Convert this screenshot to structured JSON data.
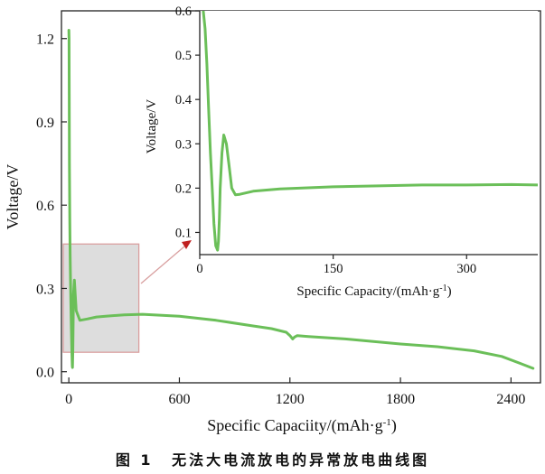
{
  "chart_data": [
    {
      "type": "line",
      "xlabel": "Specific Capaciity/(mAh·g",
      "xlabel_sup": "-1",
      "xlabel_tail": ")",
      "ylabel": "Voltage/V",
      "xlim": [
        -40,
        2560
      ],
      "ylim": [
        -0.04,
        1.3
      ],
      "xticks": [
        0,
        600,
        1200,
        1800,
        2400
      ],
      "xtick_labels": [
        "0",
        "600",
        "1200",
        "1800",
        "2400"
      ],
      "yticks": [
        0.0,
        0.3,
        0.6,
        0.9,
        1.2
      ],
      "ytick_labels": [
        "0.0",
        "0.3",
        "0.6",
        "0.9",
        "1.2"
      ],
      "grid": false,
      "line_color": "#6bbf59",
      "highlight_region": {
        "x": [
          -30,
          380
        ],
        "y": [
          0.07,
          0.46
        ],
        "fill": "#d9d9d9",
        "stroke": "#d9a0a0"
      },
      "series": [
        {
          "x": [
            0,
            1,
            2,
            3,
            5,
            7,
            9,
            11,
            13,
            15,
            17,
            19,
            20,
            22,
            25,
            30,
            40,
            60,
            100,
            150,
            200,
            300,
            400,
            600,
            800,
            1000,
            1100,
            1180,
            1200,
            1215,
            1225,
            1240,
            1300,
            1500,
            1800,
            2000,
            2200,
            2350,
            2450,
            2520
          ],
          "y": [
            1.23,
            1.2,
            1.0,
            0.75,
            0.55,
            0.42,
            0.33,
            0.25,
            0.18,
            0.12,
            0.06,
            0.02,
            0.015,
            0.08,
            0.28,
            0.33,
            0.22,
            0.185,
            0.19,
            0.197,
            0.2,
            0.205,
            0.207,
            0.2,
            0.185,
            0.165,
            0.155,
            0.142,
            0.13,
            0.118,
            0.125,
            0.13,
            0.127,
            0.118,
            0.1,
            0.09,
            0.075,
            0.055,
            0.03,
            0.012
          ]
        }
      ]
    },
    {
      "type": "line",
      "xlabel": "Specific Capacity/(mAh·g",
      "xlabel_sup": "-1",
      "xlabel_tail": ")",
      "ylabel": "Voltage/V",
      "xlim": [
        0,
        380
      ],
      "ylim": [
        0.05,
        0.6
      ],
      "xticks": [
        0,
        150,
        300
      ],
      "xtick_labels": [
        "0",
        "150",
        "300"
      ],
      "yticks": [
        0.1,
        0.2,
        0.3,
        0.4,
        0.5,
        0.6
      ],
      "ytick_labels": [
        "0.1",
        "0.2",
        "0.3",
        "0.4",
        "0.5",
        "0.6"
      ],
      "grid": false,
      "line_color": "#6bbf59",
      "series": [
        {
          "x": [
            4,
            6,
            8,
            10,
            12,
            14,
            16,
            18,
            20,
            21,
            22,
            23,
            25,
            27,
            30,
            33,
            36,
            40,
            45,
            60,
            90,
            150,
            200,
            250,
            300,
            350,
            380
          ],
          "y": [
            0.6,
            0.56,
            0.48,
            0.38,
            0.28,
            0.2,
            0.12,
            0.07,
            0.06,
            0.08,
            0.13,
            0.2,
            0.28,
            0.32,
            0.3,
            0.25,
            0.2,
            0.185,
            0.186,
            0.193,
            0.198,
            0.203,
            0.205,
            0.207,
            0.207,
            0.208,
            0.207
          ]
        }
      ]
    }
  ],
  "caption": {
    "label": "图 1",
    "text": "无法大电流放电的异常放电曲线图"
  }
}
